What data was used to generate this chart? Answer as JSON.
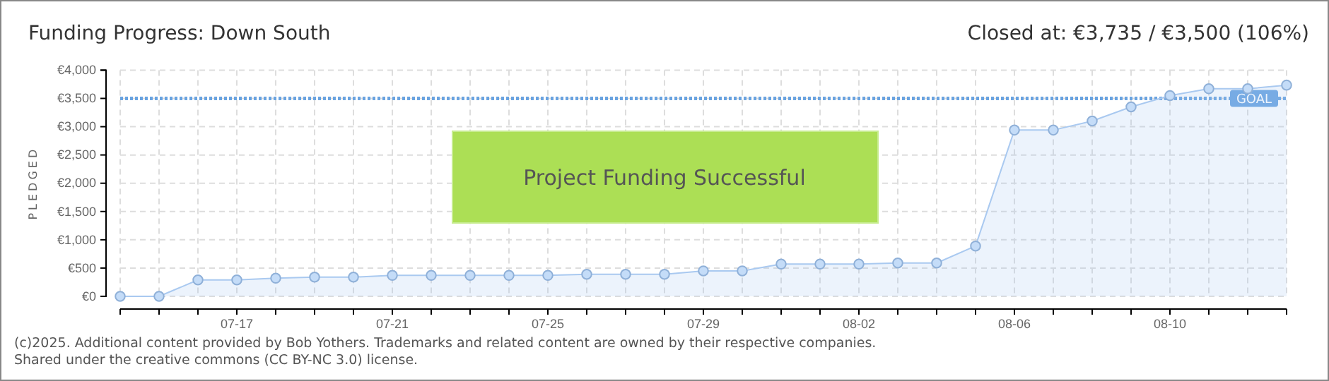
{
  "chart_data": {
    "type": "area",
    "title": "Funding Progress: Down South",
    "subtitle": "Closed at: €3,735 / €3,500 (106%)",
    "ylabel": "PLEDGED",
    "annotations": [
      "Project Funding Successful",
      "(c)2025. Additional content provided by Bob Yothers. Trademarks and related content are owned by their respective companies.",
      "Shared under the creative commons (CC BY-NC 3.0) license."
    ],
    "x": [
      "--07-14",
      "--07-15",
      "--07-16",
      "--07-17",
      "--07-18",
      "--07-19",
      "--07-20",
      "--07-21",
      "--07-22",
      "--07-23",
      "--07-24",
      "--07-25",
      "--07-26",
      "--07-27",
      "--07-28",
      "--07-29",
      "--07-30",
      "--07-31",
      "--08-01",
      "--08-02",
      "--08-03",
      "--08-04",
      "--08-05",
      "--08-06",
      "--08-07",
      "--08-08",
      "--08-09",
      "--08-10",
      "--08-11",
      "--08-12",
      "--08-13"
    ],
    "series": [
      {
        "color": "#a9c9f0",
        "values": [
          0,
          0,
          290,
          290,
          320,
          340,
          340,
          370,
          370,
          370,
          370,
          370,
          390,
          390,
          390,
          450,
          450,
          570,
          570,
          570,
          590,
          590,
          890,
          2940,
          2940,
          3100,
          3350,
          3550,
          3670,
          3670,
          3735
        ]
      }
    ],
    "xlim": [
      "--07-14",
      "--08-13"
    ],
    "xticks": [
      {
        "value": "--07-14",
        "label": null
      },
      {
        "value": "--07-15",
        "label": null
      },
      {
        "value": "--07-16",
        "label": null
      },
      {
        "value": "--07-17",
        "label": "07-17"
      },
      {
        "value": "--07-18",
        "label": null
      },
      {
        "value": "--07-19",
        "label": null
      },
      {
        "value": "--07-20",
        "label": null
      },
      {
        "value": "--07-21",
        "label": "07-21"
      },
      {
        "value": "--07-22",
        "label": null
      },
      {
        "value": "--07-23",
        "label": null
      },
      {
        "value": "--07-24",
        "label": null
      },
      {
        "value": "--07-25",
        "label": "07-25"
      },
      {
        "value": "--07-26",
        "label": null
      },
      {
        "value": "--07-27",
        "label": null
      },
      {
        "value": "--07-28",
        "label": null
      },
      {
        "value": "--07-29",
        "label": "07-29"
      },
      {
        "value": "--07-30",
        "label": null
      },
      {
        "value": "--07-31",
        "label": null
      },
      {
        "value": "--08-01",
        "label": null
      },
      {
        "value": "--08-02",
        "label": "08-02"
      },
      {
        "value": "--08-03",
        "label": null
      },
      {
        "value": "--08-04",
        "label": null
      },
      {
        "value": "--08-05",
        "label": null
      },
      {
        "value": "--08-06",
        "label": "08-06"
      },
      {
        "value": "--08-07",
        "label": null
      },
      {
        "value": "--08-08",
        "label": null
      },
      {
        "value": "--08-09",
        "label": null
      },
      {
        "value": "--08-10",
        "label": "08-10"
      },
      {
        "value": "--08-11",
        "label": null
      },
      {
        "value": "--08-12",
        "label": null
      },
      {
        "value": "--08-13",
        "label": null
      }
    ],
    "ylim": [
      0,
      4000
    ],
    "yticks": [
      {
        "value": 0,
        "label": "€0"
      },
      {
        "value": 500,
        "label": "€500"
      },
      {
        "value": 1000,
        "label": "€1,000"
      },
      {
        "value": 1500,
        "label": "€1,500"
      },
      {
        "value": 2000,
        "label": "€2,000"
      },
      {
        "value": 2500,
        "label": "€2,500"
      },
      {
        "value": 3000,
        "label": "€3,000"
      },
      {
        "value": 3500,
        "label": "€3,500"
      },
      {
        "value": 4000,
        "label": "€4,000"
      }
    ],
    "ref_lines": [
      {
        "axis": "y",
        "value": 3500,
        "label": "GOAL",
        "color": "#6aa3e0",
        "line_style": "dotted"
      }
    ],
    "grid": true,
    "marker": "circle"
  }
}
